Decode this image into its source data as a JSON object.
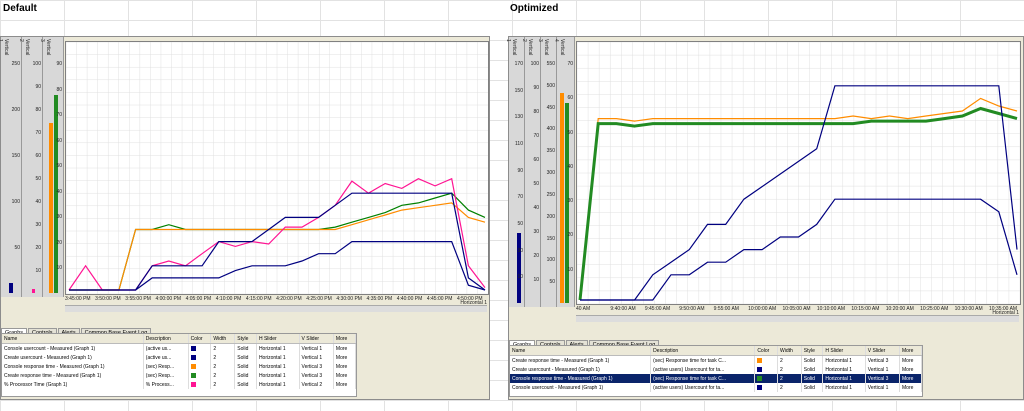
{
  "left": {
    "title": "Default",
    "slider_scales": [
      {
        "name": "Vertical 1",
        "ticks": [
          "250",
          "200",
          "150",
          "100",
          "50"
        ]
      },
      {
        "name": "Vertical 2",
        "ticks": [
          "100",
          "90",
          "80",
          "70",
          "60",
          "50",
          "40",
          "30",
          "20",
          "10"
        ]
      },
      {
        "name": "Vertical 3",
        "ticks": [
          "90",
          "80",
          "70",
          "60",
          "50",
          "40",
          "30",
          "20",
          "10"
        ]
      }
    ],
    "time_labels": [
      "3:45:00 PM",
      "3:50:00 PM",
      "3:55:00 PM",
      "4:00:00 PM",
      "4:05:00 PM",
      "4:10:00 PM",
      "4:15:00 PM",
      "4:20:00 PM",
      "4:25:00 PM",
      "4:30:00 PM",
      "4:35:00 PM",
      "4:40:00 PM",
      "4:45:00 PM",
      "4:50:00 PM"
    ],
    "h_axis_name": "Horizontal 1",
    "tabs": [
      "Graphs",
      "Controls",
      "Alerts",
      "Common Base Event Log"
    ],
    "legend_headers": [
      "Name",
      "Description",
      "Color",
      "Width",
      "Style",
      "H Slider",
      "V Slider",
      "More"
    ],
    "legend_rows": [
      {
        "name": "Console usercount - Measured (Graph 1)",
        "desc": "(active us...",
        "color": "#000080",
        "width": "2",
        "style": "Solid",
        "h": "Horizontal 1",
        "v": "Vertical 1",
        "more": "More"
      },
      {
        "name": "Create usercount - Measured (Graph 1)",
        "desc": "(active us...",
        "color": "#000080",
        "width": "2",
        "style": "Solid",
        "h": "Horizontal 1",
        "v": "Vertical 1",
        "more": "More"
      },
      {
        "name": "Console response time - Measured (Graph 1)",
        "desc": "(sec) Resp...",
        "color": "#ff8c00",
        "width": "2",
        "style": "Solid",
        "h": "Horizontal 1",
        "v": "Vertical 3",
        "more": "More"
      },
      {
        "name": "Create response time - Measured (Graph 1)",
        "desc": "(sec) Resp...",
        "color": "#228b22",
        "width": "2",
        "style": "Solid",
        "h": "Horizontal 1",
        "v": "Vertical 3",
        "more": "More"
      },
      {
        "name": "% Processor Time (Graph 1)",
        "desc": "% Process...",
        "color": "#ff1493",
        "width": "2",
        "style": "Solid",
        "h": "Horizontal 1",
        "v": "Vertical 2",
        "more": "More"
      }
    ],
    "series": [
      {
        "color": "#008000",
        "values": [
          0,
          0,
          0,
          0,
          0.25,
          0.25,
          0.27,
          0.25,
          0.25,
          0.25,
          0.25,
          0.25,
          0.25,
          0.25,
          0.25,
          0.25,
          0.26,
          0.28,
          0.3,
          0.32,
          0.35,
          0.36,
          0.38,
          0.4,
          0.33,
          0.3
        ]
      },
      {
        "color": "#ff8c00",
        "values": [
          0,
          0,
          0,
          0,
          0.25,
          0.25,
          0.25,
          0.25,
          0.25,
          0.25,
          0.25,
          0.25,
          0.25,
          0.25,
          0.25,
          0.25,
          0.25,
          0.27,
          0.29,
          0.31,
          0.33,
          0.34,
          0.35,
          0.36,
          0.3,
          0.28
        ]
      },
      {
        "color": "#ff1493",
        "values": [
          0,
          0.1,
          0,
          0,
          0,
          0.1,
          0.12,
          0.1,
          0.15,
          0.2,
          0.18,
          0.2,
          0.19,
          0.26,
          0.26,
          0.3,
          0.35,
          0.45,
          0.4,
          0.44,
          0.42,
          0.46,
          0.43,
          0.46,
          0.1,
          0.01
        ]
      },
      {
        "color": "#000080",
        "values": [
          0,
          0,
          0,
          0,
          0,
          0.1,
          0.1,
          0.1,
          0.1,
          0.2,
          0.2,
          0.2,
          0.25,
          0.3,
          0.3,
          0.3,
          0.35,
          0.4,
          0.4,
          0.4,
          0.4,
          0.4,
          0.4,
          0.4,
          0.05,
          0
        ]
      },
      {
        "color": "#000080",
        "values": [
          0,
          0,
          0,
          0,
          0,
          0.05,
          0.05,
          0.05,
          0.05,
          0.05,
          0.08,
          0.1,
          0.1,
          0.1,
          0.12,
          0.15,
          0.15,
          0.2,
          0.2,
          0.2,
          0.2,
          0.2,
          0.2,
          0.2,
          0.02,
          0
        ]
      }
    ]
  },
  "right": {
    "title": "Optimized",
    "slider_scales": [
      {
        "name": "Vertical 1",
        "ticks": [
          "170",
          "150",
          "130",
          "110",
          "90",
          "70",
          "50",
          "30",
          "10"
        ]
      },
      {
        "name": "Vertical 2",
        "ticks": [
          "100",
          "90",
          "80",
          "70",
          "60",
          "50",
          "40",
          "30",
          "20",
          "10"
        ]
      },
      {
        "name": "Vertical 3",
        "ticks": [
          "550",
          "500",
          "450",
          "400",
          "350",
          "300",
          "250",
          "200",
          "150",
          "100",
          "50"
        ]
      },
      {
        "name": "Vertical 4",
        "ticks": [
          "70",
          "60",
          "50",
          "40",
          "30",
          "20",
          "10"
        ]
      }
    ],
    "time_labels": [
      "40 AM",
      "9:40:00 AM",
      "9:45:00 AM",
      "9:50:00 AM",
      "9:55:00 AM",
      "10:00:00 AM",
      "10:05:00 AM",
      "10:10:00 AM",
      "10:15:00 AM",
      "10:20:00 AM",
      "10:25:00 AM",
      "10:30:00 AM",
      "10:35:00 AM"
    ],
    "h_axis_name": "Horizontal 1",
    "tabs": [
      "Graphs",
      "Controls",
      "Alerts",
      "Common Base Event Log"
    ],
    "legend_headers": [
      "Name",
      "Description",
      "Color",
      "Width",
      "Style",
      "H Slider",
      "V Slider",
      "More"
    ],
    "legend_rows": [
      {
        "name": "Create response time - Measured (Graph 1)",
        "desc": "(sec) Response time for task C...",
        "color": "#ff8c00",
        "width": "2",
        "style": "Solid",
        "h": "Horizontal 1",
        "v": "Vertical 3",
        "more": "More"
      },
      {
        "name": "Create usercount - Measured (Graph 1)",
        "desc": "(active users) Usercount for ta...",
        "color": "#000080",
        "width": "2",
        "style": "Solid",
        "h": "Horizontal 1",
        "v": "Vertical 1",
        "more": "More"
      },
      {
        "name": "Console response time - Measured (Graph 1)",
        "desc": "(sec) Response time for task C...",
        "color": "#228b22",
        "width": "2",
        "style": "Solid",
        "h": "Horizontal 1",
        "v": "Vertical 3",
        "more": "More",
        "selected": true
      },
      {
        "name": "Console usercount - Measured (Graph 1)",
        "desc": "(active users) Usercount for ta...",
        "color": "#000080",
        "width": "2",
        "style": "Solid",
        "h": "Horizontal 1",
        "v": "Vertical 1",
        "more": "More"
      }
    ],
    "series": [
      {
        "color": "#ff8c00",
        "values": [
          0,
          0.72,
          0.72,
          0.71,
          0.72,
          0.72,
          0.72,
          0.72,
          0.72,
          0.72,
          0.72,
          0.72,
          0.72,
          0.72,
          0.72,
          0.73,
          0.72,
          0.73,
          0.72,
          0.73,
          0.74,
          0.75,
          0.8,
          0.77,
          0.75
        ]
      },
      {
        "color": "#228b22",
        "values": [
          0,
          0.7,
          0.7,
          0.69,
          0.7,
          0.7,
          0.7,
          0.7,
          0.7,
          0.7,
          0.7,
          0.7,
          0.7,
          0.7,
          0.7,
          0.7,
          0.71,
          0.71,
          0.71,
          0.71,
          0.72,
          0.73,
          0.76,
          0.74,
          0.72
        ]
      },
      {
        "color": "#000080",
        "values": [
          0,
          0,
          0,
          0,
          0.1,
          0.15,
          0.2,
          0.3,
          0.3,
          0.4,
          0.45,
          0.5,
          0.55,
          0.6,
          0.85,
          0.85,
          0.85,
          0.85,
          0.85,
          0.85,
          0.85,
          0.85,
          0.85,
          0.85,
          0.2
        ]
      },
      {
        "color": "#000080",
        "values": [
          0,
          0,
          0,
          0,
          0,
          0.1,
          0.1,
          0.15,
          0.15,
          0.2,
          0.2,
          0.25,
          0.25,
          0.3,
          0.4,
          0.4,
          0.4,
          0.4,
          0.4,
          0.4,
          0.4,
          0.4,
          0.4,
          0.35,
          0.1
        ]
      }
    ]
  }
}
